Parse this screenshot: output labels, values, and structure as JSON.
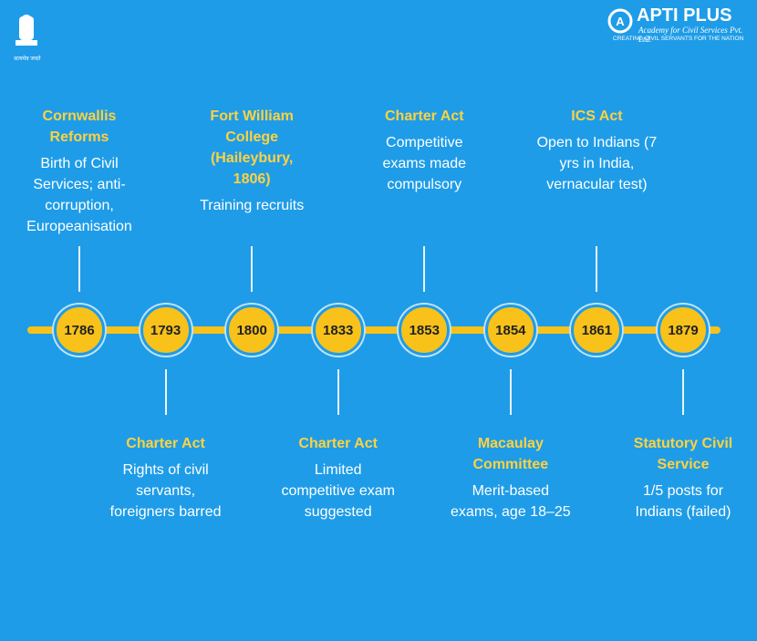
{
  "header": {
    "emblem_motto": "सत्यमेव जयते",
    "brand": "APTI PLUS",
    "brand_subtitle": "Academy for Civil Services Pvt. Ltd.",
    "tagline": "CREATING CIVIL SERVANTS FOR THE NATION"
  },
  "timeline": {
    "events": [
      {
        "year": "1786",
        "title": "Cornwallis Reforms",
        "description": "Birth of Civil Services; anti-corruption, Europeanisation"
      },
      {
        "year": "1793",
        "title": "Charter Act",
        "description": "Rights of civil servants, foreigners barred"
      },
      {
        "year": "1800",
        "title": "Fort William College (Haileybury, 1806)",
        "description": "Training recruits"
      },
      {
        "year": "1833",
        "title": "Charter Act",
        "description": "Limited competitive exam suggested"
      },
      {
        "year": "1853",
        "title": "Charter Act",
        "description": "Competitive exams made compulsory"
      },
      {
        "year": "1854",
        "title": "Macaulay Committee",
        "description": "Merit-based exams, age 18–25"
      },
      {
        "year": "1861",
        "title": "ICS Act",
        "description": "Open to Indians (7 yrs in India, vernacular test)"
      },
      {
        "year": "1879",
        "title": "Statutory Civil Service",
        "description": "1/5 posts for Indians (failed)"
      }
    ]
  }
}
